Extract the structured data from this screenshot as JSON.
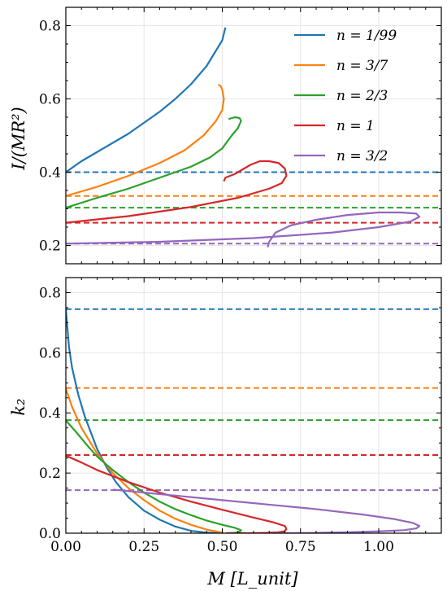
{
  "chart_data": [
    {
      "type": "line",
      "ylabel": "I/(MR²)",
      "xlabel": "",
      "xlim": [
        0.0,
        1.2
      ],
      "ylim": [
        0.15,
        0.85
      ],
      "y_ticks": [
        "0.2",
        "0.4",
        "0.6",
        "0.8"
      ],
      "y_tick_values": [
        0.2,
        0.4,
        0.6,
        0.8
      ],
      "x_tick_values": [
        0.0,
        0.25,
        0.5,
        0.75,
        1.0
      ],
      "grid": true,
      "legend": {
        "placement": "top-right",
        "entries": [
          "n = 1/99",
          "n = 3/7",
          "n = 2/3",
          "n = 1",
          "n = 3/2"
        ]
      },
      "series": [
        {
          "name": "n = 1/99",
          "color": "#1f77b4",
          "style": "solid",
          "x": [
            0.0,
            0.05,
            0.1,
            0.15,
            0.2,
            0.25,
            0.3,
            0.35,
            0.4,
            0.45,
            0.5,
            0.51
          ],
          "y": [
            0.4,
            0.43,
            0.455,
            0.48,
            0.505,
            0.535,
            0.565,
            0.6,
            0.64,
            0.69,
            0.76,
            0.795
          ]
        },
        {
          "name": "n = 3/7",
          "color": "#ff7f0e",
          "style": "solid",
          "x": [
            0.0,
            0.1,
            0.2,
            0.3,
            0.38,
            0.44,
            0.48,
            0.5,
            0.505,
            0.5,
            0.495,
            0.49,
            0.487
          ],
          "y": [
            0.335,
            0.36,
            0.39,
            0.425,
            0.46,
            0.5,
            0.54,
            0.57,
            0.6,
            0.625,
            0.635,
            0.638,
            0.638
          ]
        },
        {
          "name": "n = 2/3",
          "color": "#2ca02c",
          "style": "solid",
          "x": [
            0.0,
            0.1,
            0.2,
            0.3,
            0.4,
            0.46,
            0.5,
            0.53,
            0.55,
            0.56,
            0.555,
            0.54,
            0.52
          ],
          "y": [
            0.303,
            0.33,
            0.355,
            0.385,
            0.415,
            0.44,
            0.465,
            0.5,
            0.52,
            0.54,
            0.548,
            0.55,
            0.545
          ]
        },
        {
          "name": "n = 1",
          "color": "#d62728",
          "style": "solid",
          "x": [
            0.0,
            0.2,
            0.4,
            0.55,
            0.65,
            0.69,
            0.705,
            0.7,
            0.68,
            0.65,
            0.62,
            0.59,
            0.56,
            0.54,
            0.51,
            0.505
          ],
          "y": [
            0.262,
            0.28,
            0.305,
            0.33,
            0.355,
            0.37,
            0.39,
            0.41,
            0.425,
            0.43,
            0.43,
            0.42,
            0.405,
            0.395,
            0.385,
            0.375
          ]
        },
        {
          "name": "n = 3/2",
          "color": "#9467bd",
          "style": "solid",
          "x": [
            0.0,
            0.3,
            0.6,
            0.85,
            1.0,
            1.1,
            1.13,
            1.12,
            1.07,
            1.0,
            0.9,
            0.8,
            0.72,
            0.67,
            0.65,
            0.645
          ],
          "y": [
            0.205,
            0.21,
            0.22,
            0.235,
            0.25,
            0.265,
            0.278,
            0.287,
            0.29,
            0.29,
            0.283,
            0.27,
            0.255,
            0.235,
            0.21,
            0.195
          ]
        }
      ],
      "reference_lines": [
        {
          "series": "n = 1/99",
          "y": 0.4,
          "color": "#1f77b4",
          "style": "dashed"
        },
        {
          "series": "n = 3/7",
          "y": 0.335,
          "color": "#ff7f0e",
          "style": "dashed"
        },
        {
          "series": "n = 2/3",
          "y": 0.303,
          "color": "#2ca02c",
          "style": "dashed"
        },
        {
          "series": "n = 1",
          "y": 0.262,
          "color": "#d62728",
          "style": "dashed"
        },
        {
          "series": "n = 3/2",
          "y": 0.205,
          "color": "#9467bd",
          "style": "dashed"
        }
      ]
    },
    {
      "type": "line",
      "ylabel": "k₂",
      "xlabel": "M [L_unit]",
      "xlim": [
        0.0,
        1.2
      ],
      "ylim": [
        0.0,
        0.85
      ],
      "y_ticks": [
        "0.0",
        "0.2",
        "0.4",
        "0.6",
        "0.8"
      ],
      "y_tick_values": [
        0.0,
        0.2,
        0.4,
        0.6,
        0.8
      ],
      "x_ticks": [
        "0.00",
        "0.25",
        "0.50",
        "0.75",
        "1.00"
      ],
      "x_tick_values": [
        0.0,
        0.25,
        0.5,
        0.75,
        1.0
      ],
      "grid": true,
      "series": [
        {
          "name": "n = 1/99",
          "color": "#1f77b4",
          "style": "solid",
          "x": [
            0.0,
            0.01,
            0.02,
            0.04,
            0.06,
            0.08,
            0.1,
            0.13,
            0.16,
            0.2,
            0.25,
            0.3,
            0.35,
            0.4,
            0.45,
            0.5
          ],
          "y": [
            0.745,
            0.62,
            0.55,
            0.46,
            0.39,
            0.335,
            0.28,
            0.22,
            0.17,
            0.12,
            0.075,
            0.045,
            0.022,
            0.008,
            0.002,
            0.0
          ]
        },
        {
          "name": "n = 3/7",
          "color": "#ff7f0e",
          "style": "solid",
          "x": [
            0.0,
            0.02,
            0.05,
            0.1,
            0.15,
            0.2,
            0.25,
            0.3,
            0.35,
            0.4,
            0.45,
            0.49,
            0.5,
            0.505
          ],
          "y": [
            0.48,
            0.42,
            0.35,
            0.265,
            0.2,
            0.15,
            0.11,
            0.075,
            0.048,
            0.028,
            0.012,
            0.004,
            0.002,
            0.0
          ]
        },
        {
          "name": "n = 2/3",
          "color": "#2ca02c",
          "style": "solid",
          "x": [
            0.0,
            0.03,
            0.07,
            0.1,
            0.15,
            0.2,
            0.25,
            0.3,
            0.35,
            0.4,
            0.45,
            0.5,
            0.54,
            0.56,
            0.555,
            0.54,
            0.52
          ],
          "y": [
            0.375,
            0.34,
            0.29,
            0.255,
            0.21,
            0.17,
            0.135,
            0.105,
            0.08,
            0.06,
            0.042,
            0.028,
            0.018,
            0.01,
            0.004,
            0.001,
            0.0
          ]
        },
        {
          "name": "n = 1",
          "color": "#d62728",
          "style": "solid",
          "x": [
            0.0,
            0.05,
            0.1,
            0.15,
            0.2,
            0.3,
            0.4,
            0.5,
            0.6,
            0.66,
            0.7,
            0.705,
            0.7,
            0.68,
            0.64,
            0.6,
            0.55,
            0.51
          ],
          "y": [
            0.258,
            0.235,
            0.21,
            0.19,
            0.17,
            0.135,
            0.105,
            0.078,
            0.052,
            0.037,
            0.024,
            0.014,
            0.007,
            0.003,
            0.001,
            0.0,
            0.0,
            0.0
          ]
        },
        {
          "name": "n = 3/2",
          "color": "#9467bd",
          "style": "solid",
          "x": [
            0.15,
            0.25,
            0.35,
            0.5,
            0.65,
            0.8,
            0.95,
            1.05,
            1.11,
            1.13,
            1.12,
            1.08,
            1.0,
            0.9,
            0.8,
            0.7,
            0.66
          ],
          "y": [
            0.145,
            0.135,
            0.125,
            0.11,
            0.095,
            0.08,
            0.062,
            0.047,
            0.034,
            0.024,
            0.016,
            0.01,
            0.006,
            0.003,
            0.001,
            0.0,
            0.0
          ]
        }
      ],
      "reference_lines": [
        {
          "series": "n = 1/99",
          "y": 0.745,
          "color": "#1f77b4",
          "style": "dashed"
        },
        {
          "series": "n = 3/7",
          "y": 0.483,
          "color": "#ff7f0e",
          "style": "dashed"
        },
        {
          "series": "n = 2/3",
          "y": 0.376,
          "color": "#2ca02c",
          "style": "dashed"
        },
        {
          "series": "n = 1",
          "y": 0.26,
          "color": "#d62728",
          "style": "dashed"
        },
        {
          "series": "n = 3/2",
          "y": 0.143,
          "color": "#9467bd",
          "style": "dashed"
        }
      ]
    }
  ]
}
